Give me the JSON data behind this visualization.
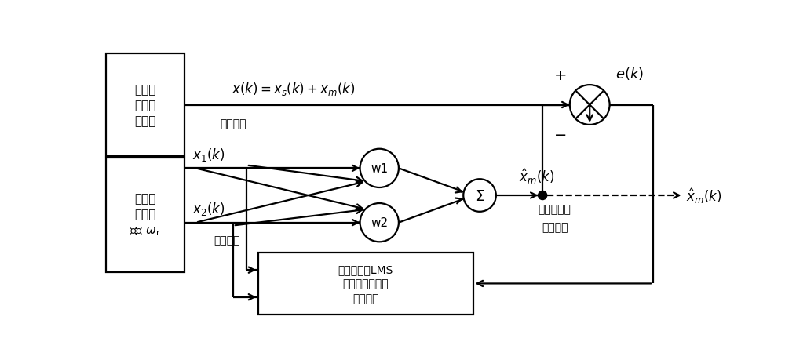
{
  "fig_width": 10.0,
  "fig_height": 4.6,
  "dpi": 100,
  "bg_color": "#ffffff",
  "box1_text": "转子径\n向位移\n传感器",
  "box2_text": "电机转\n速传感\n器测 $\\omega_{\\mathrm{r}}$",
  "box3_text": "步长函数的LMS\n滤波权值调整自\n适应算法",
  "label_displacement": "位移信号",
  "label_reference": "参考信号",
  "label_unbalance1": "不平衡振动",
  "label_unbalance2": "位移信号",
  "label_ek": "$e(k)$",
  "label_xhat_mid": "$\\hat{x}_m(k)$",
  "label_xhat_out": "$\\hat{x}_m(k)$",
  "label_xk": "$x(k)=x_s(k)+x_m(k)$",
  "label_x1k": "$x_1(k)$",
  "label_x2k": "$x_2(k)$",
  "label_w1": "w1",
  "label_w2": "w2",
  "label_sigma": "$\\Sigma$",
  "label_plus": "+",
  "label_minus": "−",
  "lw": 1.6
}
